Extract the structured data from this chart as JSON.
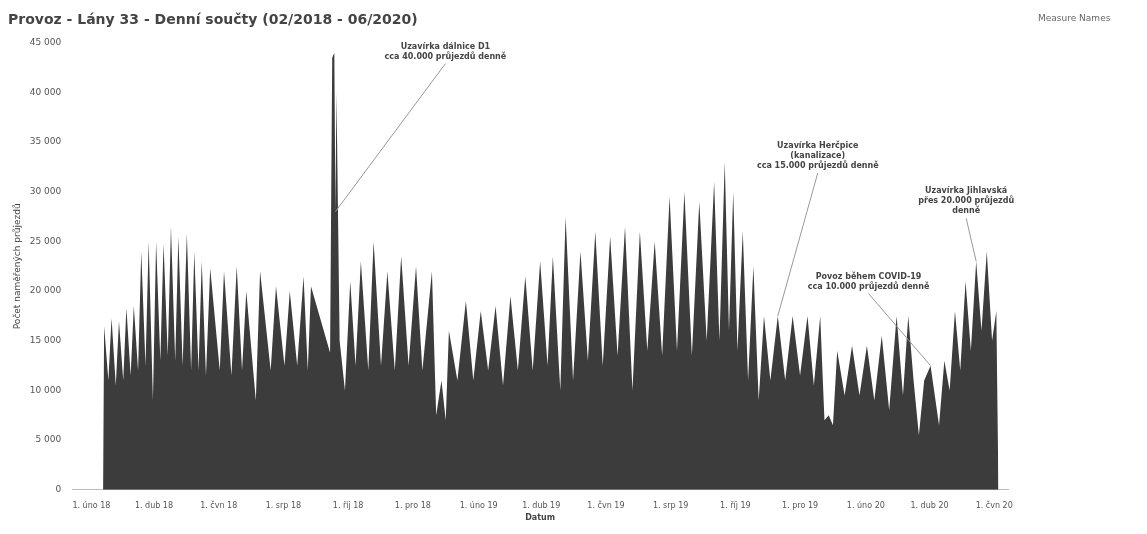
{
  "chart_data": {
    "type": "area",
    "title": "Provoz - Lány 33 - Denní součty (02/2018 - 06/2020)",
    "xlabel": "Datum",
    "ylabel": "Počet naměřených průjezdů",
    "legend_title": "Measure Names",
    "grid": false,
    "marker": "none",
    "x": [
      "2018-02-12",
      "2018-02-13",
      "2018-02-17",
      "2018-02-20",
      "2018-02-24",
      "2018-02-27",
      "2018-03-03",
      "2018-03-06",
      "2018-03-10",
      "2018-03-13",
      "2018-03-17",
      "2018-03-20",
      "2018-03-24",
      "2018-03-27",
      "2018-03-31",
      "2018-04-03",
      "2018-04-07",
      "2018-04-10",
      "2018-04-14",
      "2018-04-17",
      "2018-04-21",
      "2018-04-24",
      "2018-04-28",
      "2018-05-02",
      "2018-05-06",
      "2018-05-09",
      "2018-05-13",
      "2018-05-16",
      "2018-05-20",
      "2018-05-24",
      "2018-06-02",
      "2018-06-06",
      "2018-06-13",
      "2018-06-18",
      "2018-06-23",
      "2018-06-27",
      "2018-07-06",
      "2018-07-10",
      "2018-07-20",
      "2018-07-25",
      "2018-08-02",
      "2018-08-07",
      "2018-08-14",
      "2018-08-20",
      "2018-08-24",
      "2018-08-27",
      "2018-09-14",
      "2018-09-16",
      "2018-09-18",
      "2018-09-19",
      "2018-09-20",
      "2018-09-23",
      "2018-09-28",
      "2018-10-03",
      "2018-10-08",
      "2018-10-13",
      "2018-10-20",
      "2018-10-25",
      "2018-11-01",
      "2018-11-07",
      "2018-11-14",
      "2018-11-20",
      "2018-11-27",
      "2018-12-04",
      "2018-12-10",
      "2018-12-19",
      "2018-12-23",
      "2018-12-28",
      "2019-01-01",
      "2019-01-04",
      "2019-01-12",
      "2019-01-20",
      "2019-01-27",
      "2019-02-03",
      "2019-02-10",
      "2019-02-17",
      "2019-02-24",
      "2019-03-03",
      "2019-03-10",
      "2019-03-17",
      "2019-03-24",
      "2019-03-31",
      "2019-04-07",
      "2019-04-12",
      "2019-04-19",
      "2019-04-24",
      "2019-05-01",
      "2019-05-08",
      "2019-05-15",
      "2019-05-22",
      "2019-05-29",
      "2019-06-05",
      "2019-06-12",
      "2019-06-19",
      "2019-06-26",
      "2019-07-03",
      "2019-07-10",
      "2019-07-17",
      "2019-07-24",
      "2019-07-31",
      "2019-08-07",
      "2019-08-14",
      "2019-08-21",
      "2019-08-28",
      "2019-09-04",
      "2019-09-11",
      "2019-09-16",
      "2019-09-21",
      "2019-09-25",
      "2019-09-29",
      "2019-10-03",
      "2019-10-08",
      "2019-10-13",
      "2019-10-18",
      "2019-10-23",
      "2019-10-28",
      "2019-11-03",
      "2019-11-10",
      "2019-11-17",
      "2019-11-24",
      "2019-12-01",
      "2019-12-08",
      "2019-12-14",
      "2019-12-20",
      "2019-12-24",
      "2019-12-28",
      "2020-01-01",
      "2020-01-05",
      "2020-01-12",
      "2020-01-19",
      "2020-01-26",
      "2020-02-02",
      "2020-02-09",
      "2020-02-16",
      "2020-02-23",
      "2020-03-01",
      "2020-03-07",
      "2020-03-12",
      "2020-03-17",
      "2020-03-22",
      "2020-03-27",
      "2020-04-02",
      "2020-04-10",
      "2020-04-15",
      "2020-04-20",
      "2020-04-25",
      "2020-04-30",
      "2020-05-05",
      "2020-05-10",
      "2020-05-15",
      "2020-05-20",
      "2020-05-25",
      "2020-05-30",
      "2020-06-03",
      "2020-06-05"
    ],
    "series": [
      {
        "color": "#3c3c3c",
        "values": [
          0,
          16500,
          11000,
          17300,
          10500,
          17000,
          11000,
          18300,
          11500,
          18500,
          12000,
          24000,
          12500,
          25000,
          9000,
          25000,
          13000,
          24800,
          13500,
          26500,
          13000,
          25500,
          12500,
          25800,
          12000,
          24000,
          12000,
          23000,
          11500,
          22300,
          12000,
          22000,
          11500,
          22500,
          12000,
          20000,
          9000,
          22000,
          12000,
          20500,
          12500,
          20000,
          12500,
          21500,
          12000,
          20500,
          13800,
          43500,
          44000,
          28000,
          40000,
          15000,
          10000,
          21000,
          12500,
          23000,
          12000,
          25000,
          12500,
          22000,
          12000,
          23500,
          12500,
          22500,
          12000,
          22000,
          7500,
          11000,
          7000,
          16000,
          11000,
          19000,
          11000,
          18000,
          12000,
          18500,
          10500,
          19500,
          12000,
          21500,
          12000,
          23000,
          12500,
          23500,
          10000,
          27500,
          11000,
          24000,
          13000,
          26000,
          12500,
          25500,
          13500,
          26500,
          10000,
          26000,
          14000,
          25000,
          13500,
          29500,
          14000,
          30000,
          13500,
          29000,
          15000,
          31000,
          15000,
          33000,
          16000,
          30000,
          14000,
          26000,
          11000,
          22500,
          9000,
          17500,
          11000,
          17500,
          11000,
          17500,
          11500,
          17500,
          10500,
          17500,
          7000,
          7500,
          6500,
          14000,
          9500,
          14500,
          9500,
          14500,
          9000,
          15500,
          8000,
          17500,
          9500,
          17500,
          11000,
          5500,
          11000,
          12500,
          6500,
          13000,
          10000,
          18000,
          12000,
          21000,
          14000,
          23000,
          16000,
          24000,
          15000,
          18000,
          0
        ]
      }
    ],
    "xlim": [
      "2018-01-14",
      "2020-06-14"
    ],
    "xticks": [
      {
        "value": "2018-02-01",
        "label": "1. úno 18"
      },
      {
        "value": "2018-04-01",
        "label": "1. dub 18"
      },
      {
        "value": "2018-06-01",
        "label": "1. čvn 18"
      },
      {
        "value": "2018-08-01",
        "label": "1. srp 18"
      },
      {
        "value": "2018-10-01",
        "label": "1. říj 18"
      },
      {
        "value": "2018-12-01",
        "label": "1. pro 18"
      },
      {
        "value": "2019-02-01",
        "label": "1. úno 19"
      },
      {
        "value": "2019-04-01",
        "label": "1. dub 19"
      },
      {
        "value": "2019-06-01",
        "label": "1. čvn 19"
      },
      {
        "value": "2019-08-01",
        "label": "1. srp 19"
      },
      {
        "value": "2019-10-01",
        "label": "1. říj 19"
      },
      {
        "value": "2019-12-01",
        "label": "1. pro 19"
      },
      {
        "value": "2020-02-01",
        "label": "1. úno 20"
      },
      {
        "value": "2020-04-01",
        "label": "1. dub 20"
      },
      {
        "value": "2020-06-01",
        "label": "1. čvn 20"
      }
    ],
    "ylim": [
      0,
      45000
    ],
    "yticks": [
      0,
      {
        "value": 5000,
        "label": "5 000"
      },
      {
        "value": 10000,
        "label": "10 000"
      },
      {
        "value": 15000,
        "label": "15 000"
      },
      {
        "value": 20000,
        "label": "20 000"
      },
      {
        "value": 25000,
        "label": "25 000"
      },
      {
        "value": 30000,
        "label": "30 000"
      },
      {
        "value": 35000,
        "label": "35 000"
      },
      {
        "value": 40000,
        "label": "40 000"
      },
      {
        "value": 45000,
        "label": "45 000"
      }
    ],
    "annotations": [
      {
        "text": "Uzavírka dálnice D1\ncca 40.000 průjezdů denně",
        "x": "2018-09-19",
        "y": 28000
      },
      {
        "text": "Uzavírka Herčpice\n(kanalizace)\ncca 15.000 průjezdů denně",
        "x": "2019-11-10",
        "y": 17500
      },
      {
        "text": "Povoz během COVID-19\ncca 10.000 průjezdů denně",
        "x": "2020-04-02",
        "y": 12500
      },
      {
        "text": "Uzavírka Jihlavská\npřes 20.000 průjezdů\ndenně",
        "x": "2020-05-15",
        "y": 23000
      }
    ]
  }
}
